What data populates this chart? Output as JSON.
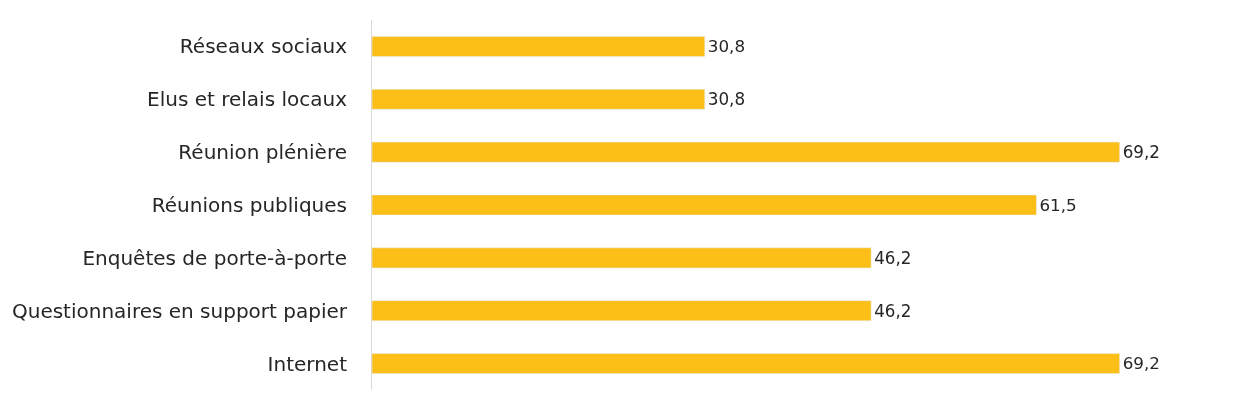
{
  "chart_data": {
    "type": "bar",
    "orientation": "horizontal",
    "categories": [
      "Réseaux sociaux",
      "Elus et relais locaux",
      "Réunion plénière",
      "Réunions publiques",
      "Enquêtes de porte-à-porte",
      "Questionnaires en support papier",
      "Internet"
    ],
    "values": [
      30.8,
      30.8,
      69.2,
      61.5,
      46.2,
      46.2,
      69.2
    ],
    "value_labels": [
      "30,8",
      "30,8",
      "69,2",
      "61,5",
      "46,2",
      "46,2",
      "69,2"
    ],
    "color": "#fbbf18",
    "tick_labels": "y"
  }
}
